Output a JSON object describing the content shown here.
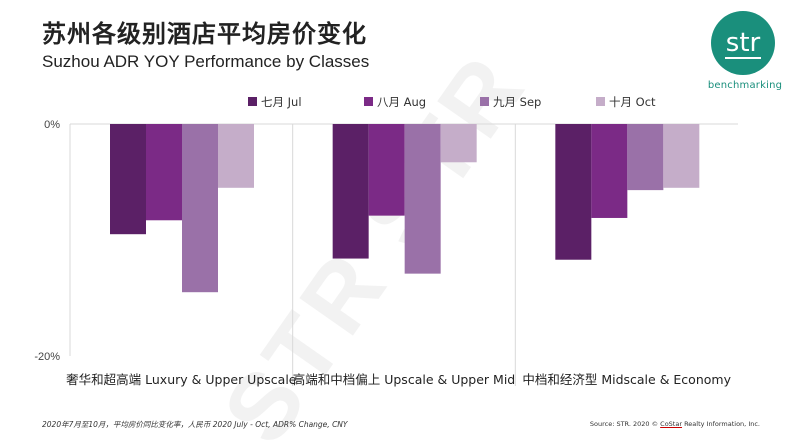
{
  "header": {
    "title_zh": "苏州各级别酒店平均房价变化",
    "title_en": "Suzhou ADR YOY Performance by Classes"
  },
  "logo": {
    "text": "str",
    "subtitle": "benchmarking",
    "color": "#1a8f7c"
  },
  "chart_data": {
    "type": "bar",
    "categories": [
      "奢华和超高端 Luxury & Upper Upscale",
      "高端和中档偏上 Upscale & Upper Mid",
      "中档和经济型 Midscale & Economy"
    ],
    "series": [
      {
        "name": "七月 Jul",
        "color": "#5b2066",
        "values": [
          -9.5,
          -11.6,
          -11.7
        ]
      },
      {
        "name": "八月 Aug",
        "color": "#7b2a86",
        "values": [
          -8.3,
          -7.9,
          -8.1
        ]
      },
      {
        "name": "九月 Sep",
        "color": "#9a71a8",
        "values": [
          -14.5,
          -12.9,
          -5.7
        ]
      },
      {
        "name": "十月 Oct",
        "color": "#c5adc9",
        "values": [
          -5.5,
          -3.3,
          -5.5
        ]
      }
    ],
    "ylim": [
      -20,
      0
    ],
    "yticks": [
      {
        "value": 0,
        "label": "0%"
      },
      {
        "value": -20,
        "label": "-20%"
      }
    ],
    "legend_position": "top-center",
    "grid": false,
    "watermark": "STR STR"
  },
  "footer": {
    "note": "2020年7月至10月，平均房价同比变化率，人民币 2020 July - Oct, ADR% Change, CNY",
    "source_prefix": "Source: STR. 2020 © ",
    "source_company": "CoStar",
    "source_suffix": " Realty Information, Inc."
  }
}
